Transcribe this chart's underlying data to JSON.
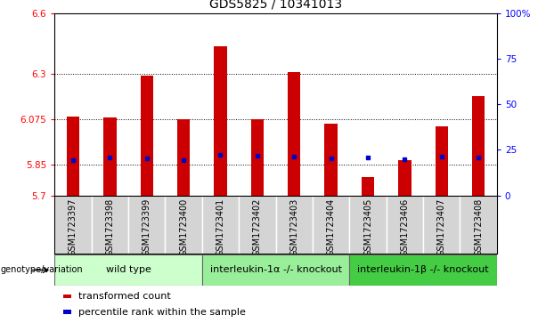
{
  "title": "GDS5825 / 10341013",
  "samples": [
    "GSM1723397",
    "GSM1723398",
    "GSM1723399",
    "GSM1723400",
    "GSM1723401",
    "GSM1723402",
    "GSM1723403",
    "GSM1723404",
    "GSM1723405",
    "GSM1723406",
    "GSM1723407",
    "GSM1723408"
  ],
  "red_values": [
    6.09,
    6.085,
    6.29,
    6.075,
    6.435,
    6.075,
    6.31,
    6.055,
    5.79,
    5.875,
    6.04,
    6.19
  ],
  "blue_values": [
    5.875,
    5.885,
    5.882,
    5.875,
    5.9,
    5.895,
    5.893,
    5.882,
    5.885,
    5.878,
    5.89,
    5.885
  ],
  "ymin": 5.7,
  "ymax": 6.6,
  "yticks": [
    5.7,
    5.85,
    6.075,
    6.3,
    6.6
  ],
  "ytick_labels": [
    "5.7",
    "5.85",
    "6.075",
    "6.3",
    "6.6"
  ],
  "right_yticks": [
    0,
    25,
    50,
    75,
    100
  ],
  "right_ytick_labels": [
    "0",
    "25",
    "50",
    "75",
    "100%"
  ],
  "grid_lines": [
    5.85,
    6.075,
    6.3
  ],
  "bar_color": "#cc0000",
  "dot_color": "#0000cc",
  "bar_width": 0.35,
  "groups": [
    {
      "label": "wild type",
      "start": 0,
      "end": 3,
      "color": "#ccffcc"
    },
    {
      "label": "interleukin-1α -/- knockout",
      "start": 4,
      "end": 7,
      "color": "#99ee99"
    },
    {
      "label": "interleukin-1β -/- knockout",
      "start": 8,
      "end": 11,
      "color": "#44cc44"
    }
  ],
  "legend_items": [
    {
      "color": "#cc0000",
      "label": "transformed count"
    },
    {
      "color": "#0000cc",
      "label": "percentile rank within the sample"
    }
  ],
  "genotype_label": "genotype/variation",
  "title_fontsize": 10,
  "tick_fontsize": 7.5,
  "xlabel_fontsize": 7,
  "group_fontsize": 8,
  "legend_fontsize": 8,
  "sample_bg_color": "#cccccc",
  "sample_cell_color": "#d4d4d4",
  "sample_border_color": "#ffffff"
}
